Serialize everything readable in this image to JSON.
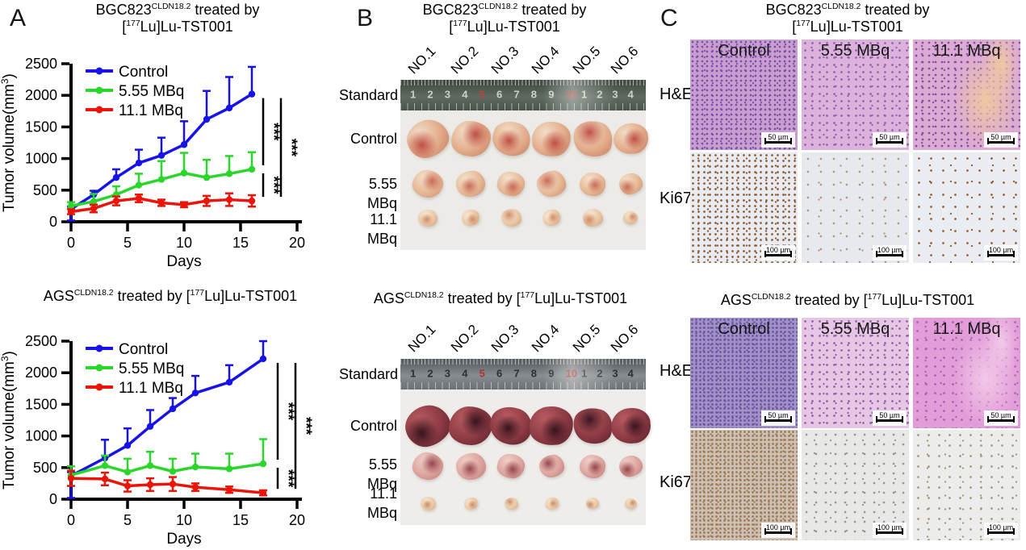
{
  "figure": {
    "panel_a_label": "A",
    "panel_b_label": "B",
    "panel_c_label": "C"
  },
  "titles": {
    "bgc": {
      "cell": "BGC823",
      "cell_sup": "CLDN18.2",
      "treated": " treated by",
      "iso_pre": "[",
      "iso_sup": "177",
      "iso_post": "Lu]Lu-TST001"
    },
    "ags": {
      "cell": "AGS",
      "cell_sup": "CLDN18.2",
      "treated": " treated by ",
      "iso_pre": "[",
      "iso_sup": "177",
      "iso_post": "Lu]Lu-TST001"
    }
  },
  "chart_data": [
    {
      "type": "line",
      "title": "BGC823^CLDN18.2 treated by [^177Lu]Lu-TST001",
      "xlabel": "Days",
      "ylabel": "Tumor volume(mm^3)",
      "ylabel_pre": "Tumor volume(mm",
      "ylabel_sup": "3",
      "ylabel_post": ")",
      "xlim": [
        0,
        20
      ],
      "ylim": [
        0,
        2500
      ],
      "xticks": [
        0,
        5,
        10,
        15,
        20
      ],
      "yticks": [
        0,
        500,
        1000,
        1500,
        2000,
        2500
      ],
      "grid": false,
      "legend_position": "inside top-left",
      "x": [
        0,
        2,
        4,
        6,
        8,
        10,
        12,
        14,
        16
      ],
      "series": [
        {
          "name": "Control",
          "color": "#1713e8",
          "values": [
            200,
            430,
            700,
            930,
            1050,
            1220,
            1620,
            1800,
            2020
          ],
          "err": [
            40,
            60,
            130,
            210,
            280,
            370,
            450,
            490,
            430
          ],
          "err_down": [
            180,
            0,
            0,
            0,
            0,
            0,
            0,
            0,
            0
          ]
        },
        {
          "name": "5.55 MBq",
          "color": "#2bd62b",
          "values": [
            250,
            320,
            430,
            580,
            670,
            770,
            700,
            760,
            830
          ],
          "err": [
            60,
            120,
            130,
            180,
            290,
            320,
            280,
            280,
            270
          ]
        },
        {
          "name": "11.1 MBq",
          "color": "#ea1408",
          "values": [
            160,
            210,
            330,
            370,
            300,
            270,
            330,
            350,
            330
          ],
          "err": [
            40,
            60,
            70,
            60,
            50,
            40,
            80,
            100,
            90
          ],
          "symmetric": true
        }
      ],
      "significance": [
        {
          "a": 0,
          "b": 1,
          "label": "***",
          "comparison": "Control vs 5.55 MBq"
        },
        {
          "a": 1,
          "b": 2,
          "label": "***",
          "comparison": "5.55 MBq vs 11.1 MBq"
        },
        {
          "a": 0,
          "b": 2,
          "label": "***",
          "comparison": "Control vs 11.1 MBq"
        }
      ]
    },
    {
      "type": "line",
      "title": "AGS^CLDN18.2 treated by [^177Lu]Lu-TST001",
      "xlabel": "Days",
      "ylabel": "Tumor volume(mm^3)",
      "ylabel_pre": "Tumor volume(mm",
      "ylabel_sup": "3",
      "ylabel_post": ")",
      "xlim": [
        0,
        20
      ],
      "ylim": [
        0,
        2500
      ],
      "xticks": [
        0,
        5,
        10,
        15,
        20
      ],
      "yticks": [
        0,
        500,
        1000,
        1500,
        2000,
        2500
      ],
      "grid": false,
      "legend_position": "inside top-left",
      "x": [
        0,
        3,
        5,
        7,
        9,
        11,
        14,
        17
      ],
      "series": [
        {
          "name": "Control",
          "color": "#1713e8",
          "values": [
            370,
            650,
            850,
            1150,
            1430,
            1680,
            1850,
            2220
          ],
          "err": [
            60,
            290,
            270,
            260,
            170,
            270,
            270,
            280
          ],
          "err_down": [
            350,
            0,
            0,
            0,
            0,
            0,
            0,
            0
          ]
        },
        {
          "name": "5.55 MBq",
          "color": "#2bd62b",
          "values": [
            380,
            530,
            430,
            530,
            440,
            510,
            480,
            560
          ],
          "err": [
            140,
            160,
            210,
            220,
            200,
            210,
            240,
            390
          ]
        },
        {
          "name": "11.1 MBq",
          "color": "#ea1408",
          "values": [
            330,
            320,
            210,
            230,
            240,
            190,
            150,
            100
          ],
          "err": [
            120,
            100,
            90,
            100,
            110,
            60,
            50,
            40
          ],
          "symmetric": true
        }
      ],
      "significance": [
        {
          "a": 0,
          "b": 1,
          "label": "***",
          "comparison": "Control vs 5.55 MBq"
        },
        {
          "a": 1,
          "b": 2,
          "label": "***",
          "comparison": "5.55 MBq vs 11.1 MBq"
        },
        {
          "a": 0,
          "b": 2,
          "label": "***",
          "comparison": "Control vs 11.1 MBq"
        }
      ]
    }
  ],
  "panels": {
    "B": {
      "groups": [
        {
          "specimen_labels": [
            "NO.1",
            "NO.2",
            "NO.3",
            "NO.4",
            "NO.5",
            "NO.6"
          ],
          "row_labels": [
            "Standard",
            "Control",
            "5.55 MBq",
            "11.1 MBq"
          ],
          "photo_bg": "#ecebe7",
          "ruler": {
            "numbers": [
              "1",
              "2",
              "3",
              "4",
              "5",
              "6",
              "7",
              "8",
              "9",
              "10",
              "1",
              "2",
              "3",
              "4"
            ],
            "red_indexes": [
              4,
              9
            ],
            "bg_top": "#3c463f",
            "bg_mid": "#5f6b61",
            "bg_bottom": "#49544c",
            "number_color": "#ccd1c6",
            "red_color": "#b84634"
          },
          "tumor_rows": [
            {
              "hi": "#f2ddc6",
              "color": "#e2ab8a",
              "edge": "#c47a5e",
              "spot": "#bf4f44",
              "sizes": [
                46,
                44,
                42,
                43,
                44,
                38
              ]
            },
            {
              "hi": "#f4e2cc",
              "color": "#e6b896",
              "edge": "#cd8a68",
              "spot": "#c96a55",
              "sizes": [
                34,
                32,
                30,
                32,
                29,
                26
              ]
            },
            {
              "hi": "#f6e8d4",
              "color": "#e9c6a4",
              "edge": "#d39a74",
              "spot": "#cf8a66",
              "sizes": [
                21,
                20,
                22,
                20,
                22,
                16
              ]
            }
          ]
        },
        {
          "specimen_labels": [
            "NO.1",
            "NO.2",
            "NO.3",
            "NO.4",
            "NO.5",
            "NO.6"
          ],
          "row_labels": [
            "Standard",
            "Control",
            "5.55 MBq",
            "11.1 MBq"
          ],
          "photo_bg": "#efedea",
          "ruler": {
            "numbers": [
              "1",
              "2",
              "3",
              "4",
              "5",
              "6",
              "7",
              "8",
              "9",
              "10",
              "1",
              "2",
              "3",
              "4"
            ],
            "red_indexes": [
              4,
              9
            ],
            "bg_top": "#53575b",
            "bg_mid": "#878d91",
            "bg_bottom": "#6a6f73",
            "number_color": "#2e3134",
            "red_color": "#ae352a"
          },
          "tumor_rows": [
            {
              "hi": "#b85b60",
              "color": "#8c3a44",
              "edge": "#561f2c",
              "spot": "#38141e",
              "sizes": [
                50,
                48,
                46,
                48,
                44,
                44
              ]
            },
            {
              "hi": "#f0cfc8",
              "color": "#dda49e",
              "edge": "#bd7a78",
              "spot": "#96444c",
              "sizes": [
                34,
                33,
                30,
                28,
                29,
                26
              ]
            },
            {
              "hi": "#f5e3c8",
              "color": "#e9cba8",
              "edge": "#d3a382",
              "spot": "#c8886e",
              "sizes": [
                17,
                15,
                15,
                15,
                14,
                13
              ]
            }
          ]
        }
      ]
    },
    "C": {
      "groups": [
        {
          "col_labels": [
            "Control",
            "5.55 MBq",
            "11.1 MBq"
          ],
          "rows": [
            {
              "label": "H&E",
              "scale_label": "50 µm",
              "tiles": [
                {
                  "base": "#c79ed0",
                  "dot": "#7e4fa4",
                  "den": 6
                },
                {
                  "base": "#dcb2dc",
                  "dot": "#8f62ab",
                  "den": 9
                },
                {
                  "base": "#dcaad2",
                  "dot": "#7e4fa4",
                  "den": 8,
                  "patch": "#eec9a0"
                }
              ]
            },
            {
              "label": "Ki67",
              "scale_label": "100 µm",
              "tiles": [
                {
                  "base": "#e8ecf2",
                  "dot": "#8e5a2d",
                  "den": 7
                },
                {
                  "base": "#e6eaef",
                  "dot": "#b2967a",
                  "den": 16
                },
                {
                  "base": "#e9edf2",
                  "dot": "#91602f",
                  "den": 15
                }
              ]
            }
          ]
        },
        {
          "col_labels": [
            "Control",
            "5.55 MBq",
            "11.1 MBq"
          ],
          "rows": [
            {
              "label": "H&E",
              "scale_label": "50 µm",
              "tiles": [
                {
                  "base": "#a291c9",
                  "dot": "#67549e",
                  "den": 5
                },
                {
                  "base": "#e7c5e5",
                  "dot": "#8f5fa8",
                  "den": 9
                },
                {
                  "base": "#e29cd8",
                  "dot": "#a661b2",
                  "den": 11,
                  "patch": "#f2c8e8"
                }
              ]
            },
            {
              "label": "Ki67",
              "scale_label": "100 µm",
              "tiles": [
                {
                  "base": "#cec1b3",
                  "dot": "#9b7856",
                  "den": 5
                },
                {
                  "base": "#e8e9e7",
                  "dot": "#98978e",
                  "den": 12
                },
                {
                  "base": "#ecedeb",
                  "dot": "#a3947f",
                  "den": 13
                }
              ]
            }
          ]
        }
      ]
    }
  }
}
